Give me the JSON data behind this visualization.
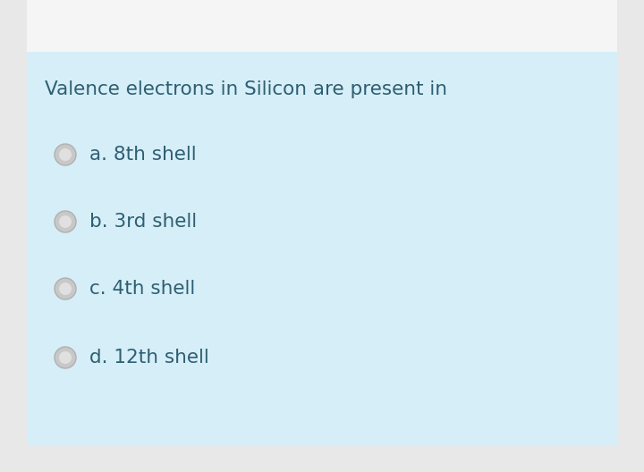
{
  "title": "Valence electrons in Silicon are present in",
  "options": [
    "a. 8th shell",
    "b. 3rd shell",
    "c. 4th shell",
    "d. 12th shell"
  ],
  "bg_light_blue": "#d6eef8",
  "sidebar_color": "#e8e8e8",
  "top_white_color": "#f5f5f5",
  "title_color": "#2e5f72",
  "option_color": "#2e5f72",
  "title_fontsize": 15.5,
  "option_fontsize": 15.5,
  "circle_outer_color": "#c8c8c8",
  "circle_inner_color": "#e0e0e0",
  "circle_edge_color": "#b0b0b0"
}
